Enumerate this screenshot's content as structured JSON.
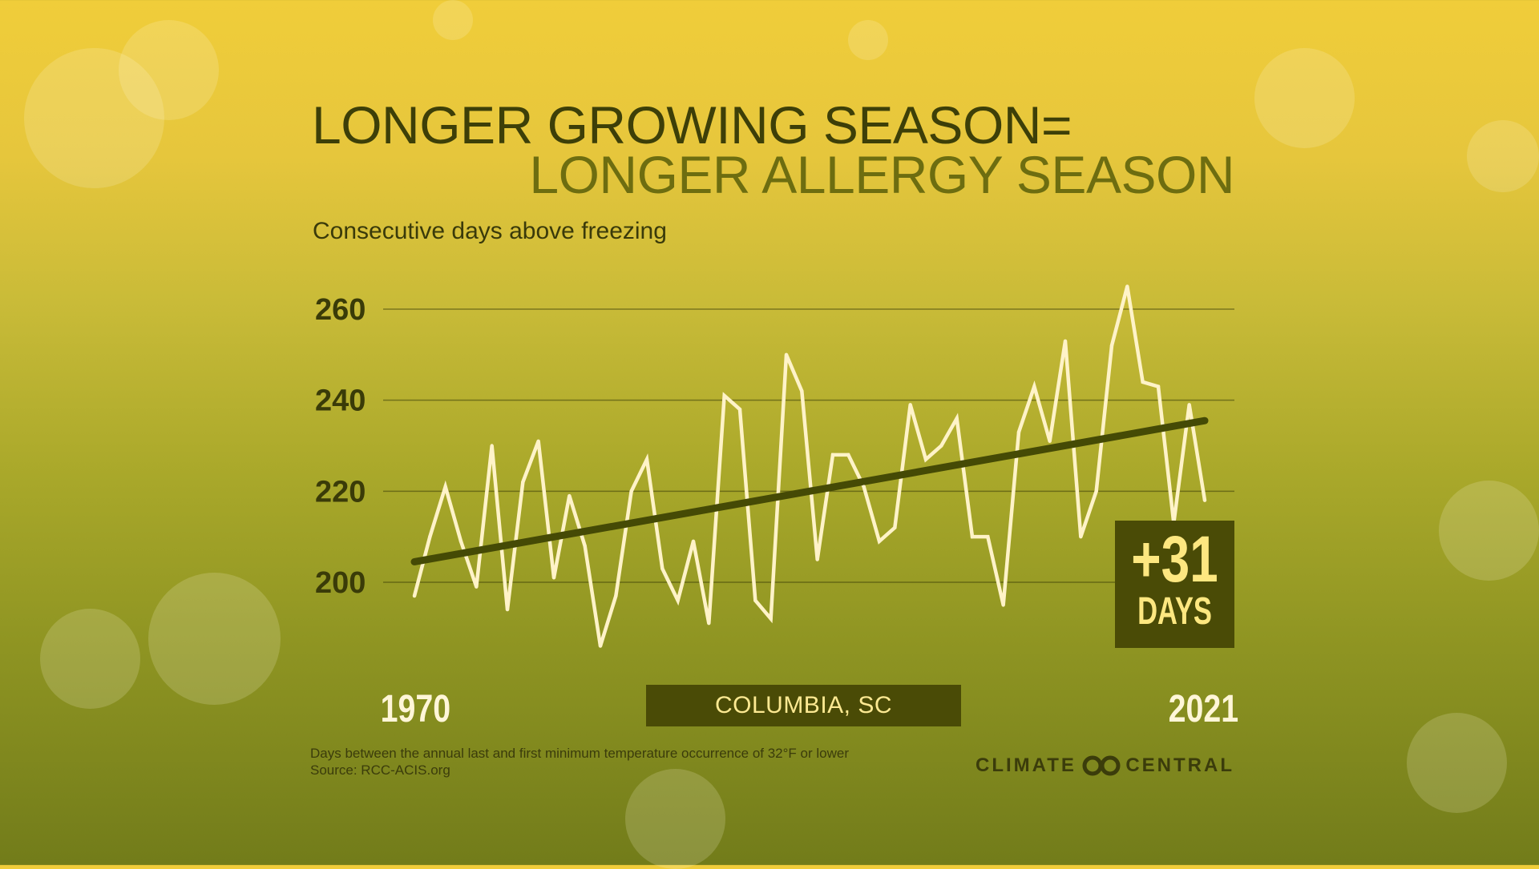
{
  "header": {
    "title_line1": "LONGER GROWING SEASON=",
    "title_line2": "LONGER ALLERGY SEASON",
    "subtitle": "Consecutive days above freezing"
  },
  "location_label": "COLUMBIA, SC",
  "badge": {
    "value": "+31",
    "unit": "DAYS"
  },
  "footnote": {
    "line1": "Days between the annual last and first minimum temperature occurrence of 32°F or lower",
    "line2": "Source: RCC-ACIS.org"
  },
  "logo": {
    "left": "CLIMATE",
    "right": "CENTRAL"
  },
  "colors": {
    "line": "#fff3c8",
    "trend": "#454a05",
    "badge_bg": "#4a4b06",
    "badge_text": "#fde780"
  },
  "chart_data": {
    "type": "line",
    "title": "LONGER GROWING SEASON= LONGER ALLERGY SEASON",
    "ylabel": "Consecutive days above freezing",
    "x_start_label": "1970",
    "x_end_label": "2021",
    "xlim": [
      1970,
      2021
    ],
    "ylim": [
      180,
      270
    ],
    "yticks": [
      200,
      220,
      240,
      260
    ],
    "grid": true,
    "x": [
      1970,
      1971,
      1972,
      1973,
      1974,
      1975,
      1976,
      1977,
      1978,
      1979,
      1980,
      1981,
      1982,
      1983,
      1984,
      1985,
      1986,
      1987,
      1988,
      1989,
      1990,
      1991,
      1992,
      1993,
      1994,
      1995,
      1996,
      1997,
      1998,
      1999,
      2000,
      2001,
      2002,
      2003,
      2004,
      2005,
      2006,
      2007,
      2008,
      2009,
      2010,
      2011,
      2012,
      2013,
      2014,
      2015,
      2016,
      2017,
      2018,
      2019,
      2020,
      2021
    ],
    "series": [
      {
        "values": [
          197,
          210,
          221,
          209,
          199,
          230,
          194,
          222,
          231,
          201,
          219,
          208,
          186,
          197,
          220,
          227,
          203,
          196,
          209,
          191,
          241,
          238,
          196,
          192,
          250,
          242,
          205,
          228,
          228,
          221,
          209,
          212,
          239,
          227,
          230,
          236,
          210,
          210,
          195,
          233,
          243,
          231,
          253,
          210,
          220,
          252,
          265,
          244,
          243,
          213,
          239,
          218
        ]
      }
    ],
    "trend": {
      "start": [
        1970,
        204.5
      ],
      "end": [
        2021,
        235.5
      ]
    }
  }
}
